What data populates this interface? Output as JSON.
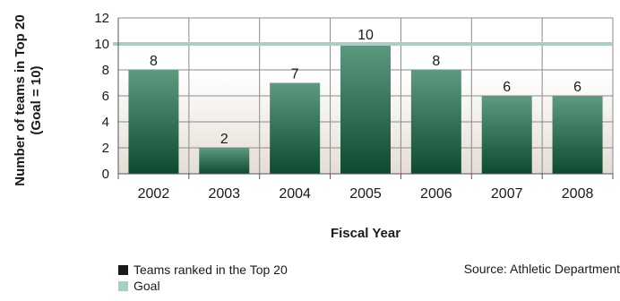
{
  "chart_data": {
    "type": "bar",
    "categories": [
      "2002",
      "2003",
      "2004",
      "2005",
      "2006",
      "2007",
      "2008"
    ],
    "values": [
      8,
      2,
      7,
      10,
      8,
      6,
      6
    ],
    "series": [
      {
        "name": "Teams ranked in the Top 20",
        "values": [
          8,
          2,
          7,
          10,
          8,
          6,
          6
        ]
      }
    ],
    "goal": 10,
    "xlabel": "Fiscal Year",
    "ylabel": "Number of teams in Top 20 (Goal = 10)",
    "ylim": [
      0,
      12
    ],
    "yticks": [
      0,
      2,
      4,
      6,
      8,
      10,
      12
    ],
    "grid": true
  },
  "legend": {
    "teams_label": "Teams ranked in the Top 20",
    "goal_label": "Goal"
  },
  "source": "Source: Athletic Department",
  "colors": {
    "bar_top": "#5e9a7f",
    "bar_bottom": "#0e4a30",
    "goal_line": "#a9cfc4",
    "legend_teams": "#1a1a1a",
    "legend_goal": "#a9cfc4",
    "plot_bg_top": "#ffffff",
    "plot_bg_bottom": "#e4ddd4",
    "grid": "#8a8a8a"
  }
}
